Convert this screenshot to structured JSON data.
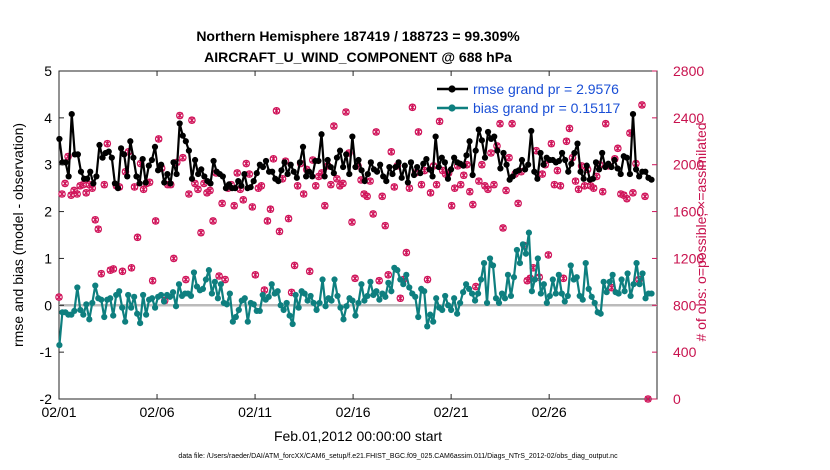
{
  "chart_data": {
    "type": "line",
    "title": "Northern Hemisphere 187419 / 188723 = 99.309%",
    "subtitle": "AIRCRAFT_U_WIND_COMPONENT @ 688 hPa",
    "xlabel": "Feb.01,2012 00:00:00 start",
    "ylabel": "rmse and bias (model - observation)",
    "ylabel_right": "# of obs: o=possible; ×=assimilated",
    "footnote": "data file: /Users/raeder/DAI/ATM_forcXX/CAM6_setup/f.e21.FHIST_BGC.f09_025.CAM6assim.011/Diags_NTrS_2012-02/obs_diag_output.nc",
    "xlim": [
      0,
      30.5
    ],
    "ylim": [
      -2,
      5
    ],
    "ylim_right": [
      0,
      2800
    ],
    "x_ticks": [
      0,
      5,
      10,
      15,
      20,
      25
    ],
    "x_tick_labels": [
      "02/01",
      "02/06",
      "02/11",
      "02/16",
      "02/21",
      "02/26"
    ],
    "y_ticks": [
      -2,
      -1,
      0,
      1,
      2,
      3,
      4,
      5
    ],
    "y_tick_labels": [
      "-2",
      "-1",
      "0",
      "1",
      "2",
      "3",
      "4",
      "5"
    ],
    "y_ticks_right": [
      0,
      400,
      800,
      1200,
      1600,
      2000,
      2400,
      2800
    ],
    "y_tick_labels_right": [
      "0",
      "400",
      "800",
      "1200",
      "1600",
      "2000",
      "2400",
      "2800"
    ],
    "legend_position": "top-right",
    "colors": {
      "rmse": "#000000",
      "bias": "#0e7f7f",
      "obs": "#d0145a",
      "zero_line": "#bbbbbb"
    },
    "series": [
      {
        "name": "rmse",
        "legend": "rmse grand pr = 2.9576",
        "axis": "left",
        "values": [
          3.55,
          3.05,
          3.05,
          2.75,
          4.08,
          3.22,
          3.22,
          2.85,
          2.7,
          2.7,
          2.85,
          2.6,
          2.75,
          3.42,
          3.15,
          3.25,
          3.28,
          3.15,
          2.6,
          2.5,
          3.35,
          3.22,
          2.75,
          3.5,
          3.15,
          2.75,
          2.6,
          3.12,
          2.62,
          2.98,
          3.1,
          3.38,
          2.88,
          3.0,
          2.62,
          2.8,
          2.6,
          3.05,
          2.8,
          3.88,
          3.62,
          3.5,
          3.3,
          2.7,
          3.1,
          2.8,
          2.9,
          2.75,
          2.65,
          2.6,
          3.08,
          2.85,
          2.8,
          2.75,
          2.5,
          2.58,
          2.5,
          2.5,
          2.65,
          2.55,
          2.8,
          2.5,
          2.52,
          2.65,
          2.82,
          3.0,
          2.95,
          3.08,
          2.85,
          2.85,
          2.7,
          2.65,
          2.88,
          3.05,
          2.8,
          3.0,
          2.85,
          2.72,
          3.05,
          3.38,
          2.75,
          2.85,
          2.75,
          3.08,
          3.08,
          3.65,
          2.75,
          3.1,
          2.95,
          2.82,
          3.15,
          3.3,
          2.95,
          3.22,
          2.8,
          3.6,
          2.95,
          3.1,
          2.88,
          2.65,
          2.8,
          3.05,
          2.9,
          2.85,
          3.0,
          2.75,
          2.65,
          2.95,
          2.8,
          2.95,
          3.05,
          2.72,
          2.98,
          2.62,
          3.05,
          2.78,
          2.95,
          2.82,
          3.02,
          3.12,
          2.9,
          2.75,
          3.6,
          2.95,
          3.15,
          3.05,
          2.7,
          2.9,
          3.15,
          3.05,
          3.02,
          2.98,
          3.2,
          3.5,
          2.78,
          3.3,
          3.75,
          3.52,
          3.15,
          3.7,
          3.55,
          3.6,
          3.3,
          2.92,
          3.25,
          3.0,
          2.68,
          2.75,
          2.85,
          2.88,
          3.1,
          2.9,
          3.0,
          3.72,
          2.85,
          2.7,
          3.25,
          3.0,
          3.15,
          3.1,
          3.1,
          3.05,
          3.08,
          3.25,
          3.1,
          2.85,
          3.02,
          3.25,
          3.45,
          2.85,
          2.7,
          2.98,
          2.68,
          2.7,
          3.05,
          2.9,
          3.25,
          2.95,
          3.02,
          2.95,
          3.1,
          2.92,
          2.8,
          3.18,
          3.15,
          2.8,
          4.08,
          2.9,
          2.75,
          2.85,
          2.85,
          2.72,
          2.68
        ]
      },
      {
        "name": "bias",
        "legend": "bias grand pr = 0.15117",
        "axis": "left",
        "values": [
          -0.85,
          -0.15,
          -0.15,
          -0.2,
          -0.2,
          -0.12,
          0.38,
          -0.1,
          -0.2,
          0.02,
          -0.3,
          0.05,
          0.42,
          0.15,
          0.12,
          -0.25,
          0.12,
          0.15,
          -0.22,
          0.22,
          0.3,
          -0.05,
          -0.35,
          0.22,
          -0.05,
          0.18,
          -0.18,
          -0.38,
          0.22,
          -0.2,
          0.12,
          0.15,
          -0.05,
          0.18,
          0.22,
          0.08,
          0.22,
          0.18,
          0.28,
          -0.02,
          0.45,
          0.2,
          0.25,
          0.25,
          0.2,
          0.7,
          0.4,
          0.32,
          0.35,
          0.55,
          0.75,
          0.25,
          0.5,
          0.15,
          0.45,
          0.05,
          0.02,
          0.25,
          -0.35,
          -0.25,
          -0.1,
          0.1,
          0.15,
          -0.35,
          0.05,
          0.02,
          -0.12,
          -0.12,
          0.22,
          0.12,
          0.18,
          0.45,
          0.25,
          0.3,
          0.0,
          -0.1,
          0.05,
          -0.22,
          -0.4,
          0.22,
          -0.05,
          0.3,
          0.25,
          0.1,
          0.2,
          0.05,
          -0.1,
          0.05,
          0.55,
          -0.02,
          0.15,
          0.1,
          0.55,
          0.2,
          -0.05,
          -0.3,
          -0.02,
          0.15,
          0.1,
          -0.22,
          0.05,
          0.45,
          0.1,
          0.2,
          0.5,
          0.22,
          0.3,
          0.12,
          0.25,
          0.18,
          0.48,
          0.3,
          0.8,
          0.75,
          0.55,
          0.45,
          0.65,
          0.38,
          0.25,
          0.18,
          -0.25,
          0.35,
          0.3,
          -0.45,
          -0.2,
          -0.35,
          0.15,
          -0.05,
          -0.1,
          0.2,
          0.0,
          -0.1,
          0.15,
          -0.18,
          0.05,
          0.28,
          0.45,
          0.35,
          0.25,
          0.1,
          0.25,
          0.55,
          0.9,
          0.05,
          1.0,
          0.85,
          0.15,
          0.05,
          0.25,
          0.15,
          0.65,
          0.2,
          0.6,
          1.18,
          0.9,
          1.3,
          1.1,
          1.55,
          0.3,
          0.55,
          1.0,
          0.25,
          0.45,
          0.05,
          0.2,
          0.55,
          0.25,
          0.65,
          0.25,
          0.08,
          0.2,
          0.85,
          0.55,
          0.6,
          0.2,
          0.12,
          0.9,
          0.35,
          0.18,
          0.05,
          -0.15,
          -0.18,
          0.5,
          0.28,
          0.5,
          0.65,
          0.28,
          0.25,
          0.55,
          0.3,
          0.68,
          0.2,
          0.45,
          0.9,
          0.45,
          0.68,
          0.15,
          0.25,
          0.25
        ]
      },
      {
        "name": "# obs possible",
        "axis": "right",
        "values": [
          870,
          1750,
          1840,
          2070,
          1740,
          1780,
          1750,
          1820,
          1830,
          1760,
          1830,
          1800,
          1530,
          1450,
          1070,
          1830,
          2180,
          1100,
          1110,
          1820,
          1810,
          1090,
          1940,
          2110,
          1120,
          1810,
          1380,
          2010,
          1790,
          1840,
          1850,
          1010,
          1520,
          2220,
          1970,
          840,
          1830,
          1830,
          1200,
          2020,
          2420,
          2060,
          1020,
          1750,
          2380,
          1840,
          1790,
          1420,
          1840,
          1760,
          1780,
          1520,
          1930,
          1050,
          1670,
          1020,
          1800,
          1830,
          1650,
          1930,
          1790,
          1700,
          2010,
          1920,
          1640,
          1060,
          1800,
          1820,
          930,
          1520,
          1620,
          2050,
          2460,
          1430,
          1880,
          2030,
          1540,
          910,
          1140,
          1820,
          2010,
          1750,
          1960,
          1090,
          2040,
          1820,
          1900,
          1930,
          1650,
          1990,
          1830,
          2330,
          1880,
          1820,
          1840,
          2450,
          2100,
          1510,
          1030,
          1990,
          1870,
          1750,
          1730,
          1860,
          1580,
          2280,
          1010,
          1730,
          1480,
          1060,
          2110,
          1810,
          1990,
          860,
          1020,
          1250,
          1800,
          2490,
          1930,
          2280,
          1830,
          1950,
          1020,
          1760,
          1990,
          1830,
          2370,
          1950,
          1920,
          1930,
          1650,
          1800,
          1990,
          1830,
          1910,
          2000,
          1770,
          1660,
          960,
          1860,
          2000,
          1820,
          1790,
          2100,
          1830,
          2160,
          2350,
          1460,
          1780,
          2060,
          2350,
          1920,
          1670,
          1940,
          1310,
          1010,
          1030,
          1120,
          2120,
          1040,
          1920,
          2000,
          1230,
          2180,
          1830,
          1950,
          1820,
          1030,
          2200,
          2310,
          2060,
          1860,
          1790,
          1990,
          1820,
          1960,
          1820,
          1800,
          1900,
          2000,
          1770,
          2350,
          1990,
          950,
          2050,
          2140,
          1750,
          1740,
          1710,
          2270,
          1760,
          2010,
          1020,
          2510,
          1730,
          0
        ]
      }
    ]
  }
}
